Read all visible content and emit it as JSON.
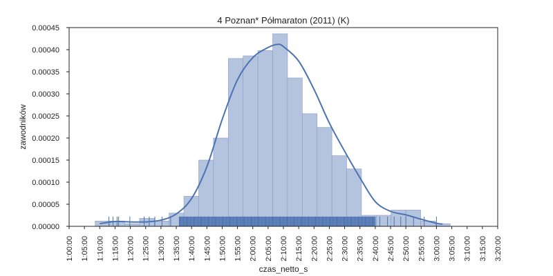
{
  "chart_data": {
    "type": "histogram",
    "title": "4 Poznan* Półmaraton (2011) (K)",
    "xlabel": "czas_netto_s",
    "ylabel": "zawodników",
    "xlim_seconds": [
      3600,
      12000
    ],
    "ylim": [
      0,
      0.00045
    ],
    "yticks": [
      0.0,
      5e-05,
      0.0001,
      0.00015,
      0.0002,
      0.00025,
      0.0003,
      0.00035,
      0.0004,
      0.00045
    ],
    "ytick_labels": [
      "0.00000",
      "0.00005",
      "0.00010",
      "0.00015",
      "0.00020",
      "0.00025",
      "0.00030",
      "0.00035",
      "0.00040",
      "0.00045"
    ],
    "xtick_labels": [
      "1:00:00",
      "1:05:00",
      "1:10:00",
      "1:15:00",
      "1:20:00",
      "1:25:00",
      "1:30:00",
      "1:35:00",
      "1:40:00",
      "1:45:00",
      "1:50:00",
      "1:55:00",
      "2:00:00",
      "2:05:00",
      "2:10:00",
      "2:15:00",
      "2:20:00",
      "2:25:00",
      "2:30:00",
      "2:35:00",
      "2:40:00",
      "2:45:00",
      "2:50:00",
      "2:55:00",
      "3:00:00",
      "3:05:00",
      "3:10:00",
      "3:15:00",
      "3:20:00"
    ],
    "bins": [
      {
        "start": "1:08:30",
        "end": "1:13:20",
        "density": 1.2e-05
      },
      {
        "start": "1:13:20",
        "end": "1:18:10",
        "density": 1.2e-05
      },
      {
        "start": "1:18:10",
        "end": "1:23:00",
        "density": 6e-06
      },
      {
        "start": "1:23:00",
        "end": "1:27:50",
        "density": 1.8e-05
      },
      {
        "start": "1:27:50",
        "end": "1:32:40",
        "density": 1.2e-05
      },
      {
        "start": "1:32:40",
        "end": "1:37:30",
        "density": 3e-05
      },
      {
        "start": "1:37:30",
        "end": "1:42:20",
        "density": 6.8e-05
      },
      {
        "start": "1:42:20",
        "end": "1:47:10",
        "density": 0.00015
      },
      {
        "start": "1:47:10",
        "end": "1:52:00",
        "density": 0.0002
      },
      {
        "start": "1:52:00",
        "end": "1:56:50",
        "density": 0.00038
      },
      {
        "start": "1:56:50",
        "end": "2:01:40",
        "density": 0.000386
      },
      {
        "start": "2:01:40",
        "end": "2:06:30",
        "density": 0.000398
      },
      {
        "start": "2:06:30",
        "end": "2:11:20",
        "density": 0.000436
      },
      {
        "start": "2:11:20",
        "end": "2:16:10",
        "density": 0.000336
      },
      {
        "start": "2:16:10",
        "end": "2:21:00",
        "density": 0.000255
      },
      {
        "start": "2:21:00",
        "end": "2:25:50",
        "density": 0.000224
      },
      {
        "start": "2:25:50",
        "end": "2:30:40",
        "density": 0.00016
      },
      {
        "start": "2:30:40",
        "end": "2:35:30",
        "density": 0.00013
      },
      {
        "start": "2:35:30",
        "end": "2:40:20",
        "density": 2.5e-05
      },
      {
        "start": "2:40:20",
        "end": "2:45:10",
        "density": 2.5e-05
      },
      {
        "start": "2:45:10",
        "end": "2:50:00",
        "density": 3.7e-05
      },
      {
        "start": "2:50:00",
        "end": "2:54:50",
        "density": 3.7e-05
      },
      {
        "start": "2:54:50",
        "end": "2:59:40",
        "density": 1.2e-05
      },
      {
        "start": "2:59:40",
        "end": "3:04:30",
        "density": 6e-06
      }
    ],
    "kde": {
      "x": [
        "1:10:00",
        "1:15:00",
        "1:20:00",
        "1:25:00",
        "1:30:00",
        "1:35:00",
        "1:40:00",
        "1:45:00",
        "1:50:00",
        "1:55:00",
        "2:00:00",
        "2:05:00",
        "2:08:00",
        "2:10:00",
        "2:15:00",
        "2:20:00",
        "2:25:00",
        "2:30:00",
        "2:35:00",
        "2:40:00",
        "2:45:00",
        "2:50:00",
        "2:55:00",
        "3:00:00",
        "3:02:00"
      ],
      "y": [
        6e-06,
        1.1e-05,
        1e-05,
        1e-05,
        1.4e-05,
        2.8e-05,
        6.3e-05,
        0.000135,
        0.000242,
        0.000332,
        0.000382,
        0.000405,
        0.000412,
        0.000407,
        0.000374,
        0.00031,
        0.000234,
        0.00017,
        0.00011,
        5.6e-05,
        3.4e-05,
        2.6e-05,
        1.6e-05,
        7e-06,
        5e-06
      ]
    },
    "rug": {
      "range_start": "1:36:00",
      "range_end": "2:40:00",
      "dense_height_value": 2.2e-05,
      "sparse_points": [
        "1:13:00",
        "1:14:20",
        "1:15:40",
        "1:16:10",
        "1:19:50",
        "1:24:30",
        "1:26:10",
        "1:28:00",
        "1:30:20",
        "1:33:10",
        "2:41:30",
        "2:44:00",
        "2:46:10",
        "2:48:20",
        "2:50:00",
        "2:52:30",
        "2:56:00",
        "3:00:00"
      ]
    },
    "colors": {
      "bar_fill": "#b4c3de",
      "bar_edge": "#8a9dc5",
      "line": "#4c72b0",
      "rug": "#4c72b0",
      "axis": "#222222"
    },
    "grid": false
  }
}
